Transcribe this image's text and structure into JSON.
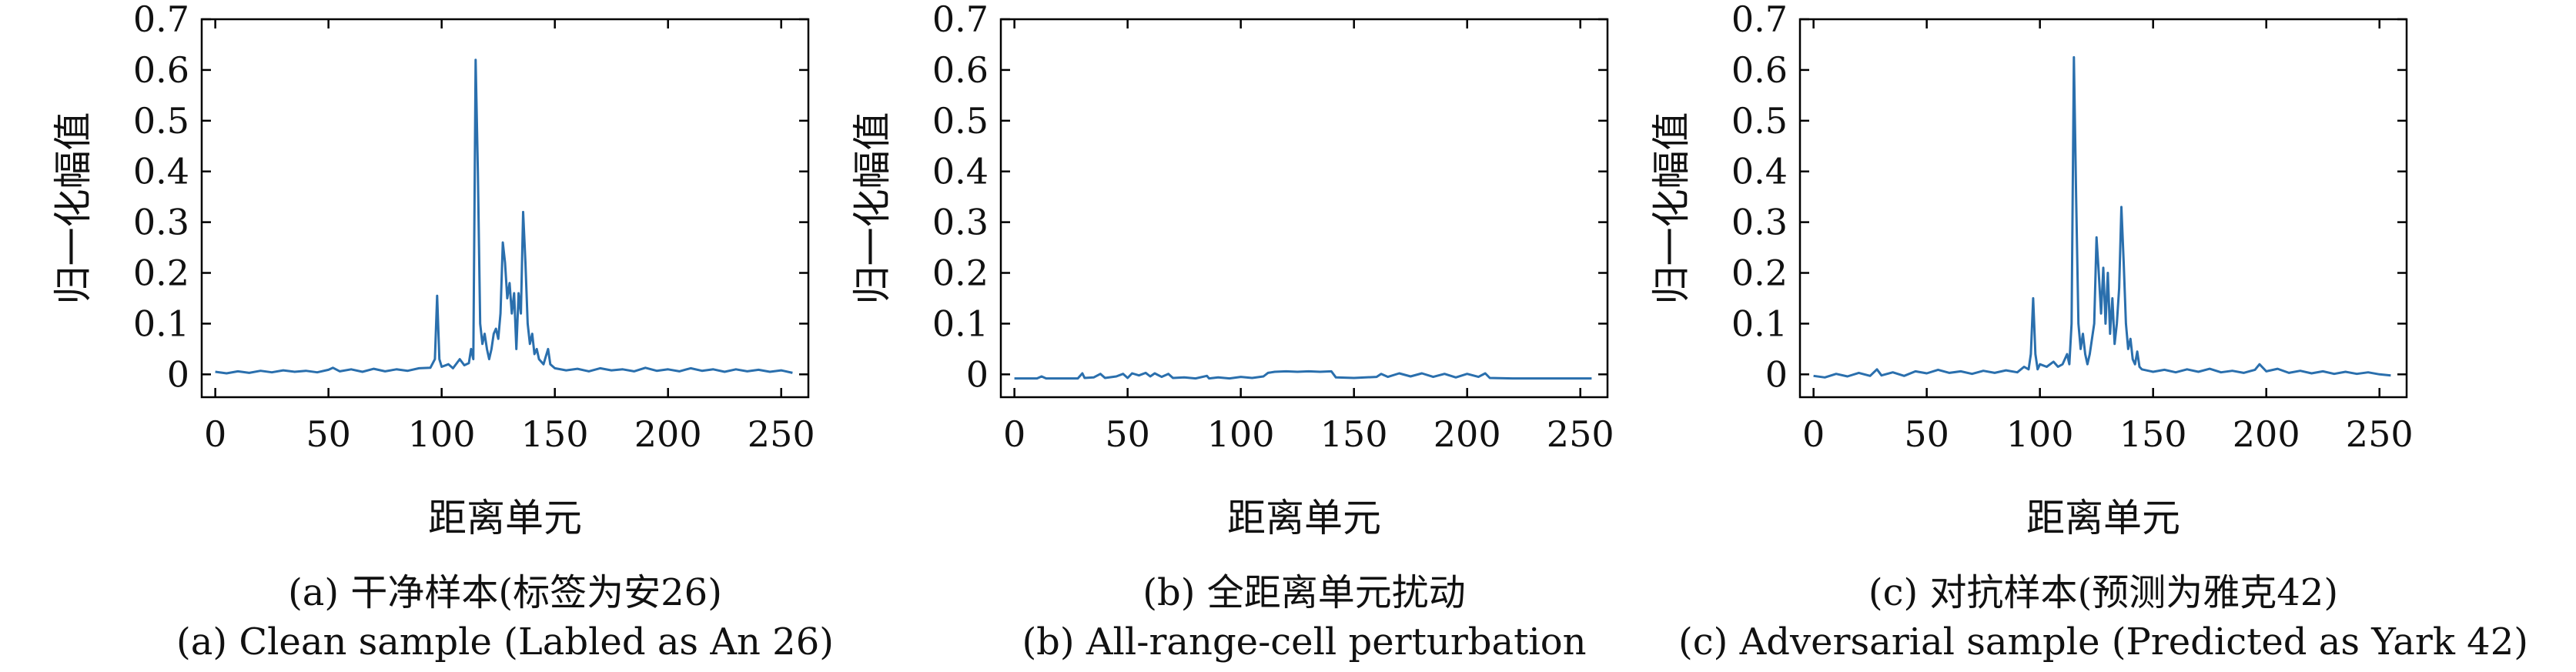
{
  "chart_data": [
    {
      "type": "line",
      "caption_cn": "(a) 干净样本(标签为安26)",
      "caption_en": "(a) Clean sample (Labled as An 26)",
      "xlabel": "距离单元",
      "ylabel": "归一化幅值",
      "xlim": [
        -6,
        262
      ],
      "ylim": [
        -0.045,
        0.7
      ],
      "xticks": [
        0,
        50,
        100,
        150,
        200,
        250
      ],
      "yticks": [
        0,
        0.1,
        0.2,
        0.3,
        0.4,
        0.5,
        0.6,
        0.7
      ],
      "ytick_labels": [
        "0",
        "0.1",
        "0.2",
        "0.3",
        "0.4",
        "0.5",
        "0.6",
        "0.7"
      ],
      "grid": false,
      "color": "#2a6fad",
      "series": [
        {
          "points": [
            [
              0,
              0.005
            ],
            [
              5,
              0.002
            ],
            [
              10,
              0.006
            ],
            [
              15,
              0.003
            ],
            [
              20,
              0.007
            ],
            [
              25,
              0.004
            ],
            [
              30,
              0.008
            ],
            [
              35,
              0.005
            ],
            [
              40,
              0.007
            ],
            [
              45,
              0.004
            ],
            [
              50,
              0.009
            ],
            [
              52,
              0.013
            ],
            [
              55,
              0.006
            ],
            [
              60,
              0.01
            ],
            [
              65,
              0.005
            ],
            [
              70,
              0.011
            ],
            [
              75,
              0.006
            ],
            [
              80,
              0.01
            ],
            [
              85,
              0.007
            ],
            [
              90,
              0.012
            ],
            [
              95,
              0.013
            ],
            [
              97,
              0.03
            ],
            [
              98,
              0.155
            ],
            [
              99,
              0.03
            ],
            [
              100,
              0.015
            ],
            [
              103,
              0.02
            ],
            [
              105,
              0.012
            ],
            [
              108,
              0.03
            ],
            [
              110,
              0.018
            ],
            [
              112,
              0.022
            ],
            [
              113,
              0.05
            ],
            [
              114,
              0.03
            ],
            [
              115,
              0.62
            ],
            [
              116,
              0.4
            ],
            [
              117,
              0.1
            ],
            [
              118,
              0.06
            ],
            [
              119,
              0.08
            ],
            [
              120,
              0.05
            ],
            [
              121,
              0.03
            ],
            [
              122,
              0.05
            ],
            [
              123,
              0.08
            ],
            [
              124,
              0.09
            ],
            [
              125,
              0.07
            ],
            [
              126,
              0.12
            ],
            [
              127,
              0.26
            ],
            [
              128,
              0.22
            ],
            [
              129,
              0.15
            ],
            [
              130,
              0.18
            ],
            [
              131,
              0.12
            ],
            [
              132,
              0.16
            ],
            [
              133,
              0.05
            ],
            [
              134,
              0.16
            ],
            [
              135,
              0.12
            ],
            [
              136,
              0.32
            ],
            [
              137,
              0.22
            ],
            [
              138,
              0.1
            ],
            [
              139,
              0.06
            ],
            [
              140,
              0.08
            ],
            [
              141,
              0.04
            ],
            [
              142,
              0.05
            ],
            [
              143,
              0.03
            ],
            [
              145,
              0.02
            ],
            [
              146,
              0.035
            ],
            [
              147,
              0.05
            ],
            [
              148,
              0.02
            ],
            [
              150,
              0.012
            ],
            [
              155,
              0.008
            ],
            [
              160,
              0.011
            ],
            [
              165,
              0.006
            ],
            [
              170,
              0.012
            ],
            [
              175,
              0.008
            ],
            [
              180,
              0.01
            ],
            [
              185,
              0.006
            ],
            [
              190,
              0.013
            ],
            [
              195,
              0.007
            ],
            [
              200,
              0.01
            ],
            [
              205,
              0.006
            ],
            [
              210,
              0.012
            ],
            [
              215,
              0.007
            ],
            [
              220,
              0.01
            ],
            [
              225,
              0.005
            ],
            [
              230,
              0.01
            ],
            [
              235,
              0.006
            ],
            [
              240,
              0.009
            ],
            [
              245,
              0.005
            ],
            [
              250,
              0.008
            ],
            [
              255,
              0.003
            ]
          ]
        }
      ]
    },
    {
      "type": "line",
      "caption_cn": "(b) 全距离单元扰动",
      "caption_en": "(b) All-range-cell perturbation",
      "xlabel": "距离单元",
      "ylabel": "归一化幅值",
      "xlim": [
        -6,
        262
      ],
      "ylim": [
        -0.045,
        0.7
      ],
      "xticks": [
        0,
        50,
        100,
        150,
        200,
        250
      ],
      "yticks": [
        0,
        0.1,
        0.2,
        0.3,
        0.4,
        0.5,
        0.6,
        0.7
      ],
      "ytick_labels": [
        "0",
        "0.1",
        "0.2",
        "0.3",
        "0.4",
        "0.5",
        "0.6",
        "0.7"
      ],
      "grid": false,
      "color": "#2a6fad",
      "series": [
        {
          "points": [
            [
              0,
              -0.008
            ],
            [
              10,
              -0.008
            ],
            [
              12,
              -0.004
            ],
            [
              14,
              -0.008
            ],
            [
              28,
              -0.008
            ],
            [
              30,
              0.002
            ],
            [
              31,
              -0.007
            ],
            [
              35,
              -0.006
            ],
            [
              38,
              0.001
            ],
            [
              40,
              -0.007
            ],
            [
              45,
              -0.004
            ],
            [
              48,
              0.001
            ],
            [
              50,
              -0.007
            ],
            [
              52,
              0.002
            ],
            [
              55,
              -0.002
            ],
            [
              58,
              0.003
            ],
            [
              60,
              -0.004
            ],
            [
              62,
              0.002
            ],
            [
              65,
              -0.005
            ],
            [
              68,
              0.001
            ],
            [
              70,
              -0.007
            ],
            [
              75,
              -0.006
            ],
            [
              80,
              -0.008
            ],
            [
              85,
              -0.003
            ],
            [
              86,
              -0.008
            ],
            [
              90,
              -0.006
            ],
            [
              95,
              -0.008
            ],
            [
              100,
              -0.005
            ],
            [
              105,
              -0.007
            ],
            [
              110,
              -0.004
            ],
            [
              112,
              0.003
            ],
            [
              115,
              0.005
            ],
            [
              120,
              0.006
            ],
            [
              125,
              0.005
            ],
            [
              130,
              0.006
            ],
            [
              135,
              0.005
            ],
            [
              140,
              0.006
            ],
            [
              142,
              -0.006
            ],
            [
              150,
              -0.007
            ],
            [
              160,
              -0.005
            ],
            [
              162,
              0.001
            ],
            [
              165,
              -0.005
            ],
            [
              170,
              0.002
            ],
            [
              175,
              -0.004
            ],
            [
              180,
              0.002
            ],
            [
              185,
              -0.005
            ],
            [
              190,
              0.001
            ],
            [
              195,
              -0.006
            ],
            [
              200,
              0.001
            ],
            [
              205,
              -0.005
            ],
            [
              208,
              0.002
            ],
            [
              210,
              -0.007
            ],
            [
              220,
              -0.008
            ],
            [
              230,
              -0.008
            ],
            [
              240,
              -0.008
            ],
            [
              250,
              -0.008
            ],
            [
              255,
              -0.008
            ]
          ]
        }
      ]
    },
    {
      "type": "line",
      "caption_cn": "(c) 对抗样本(预测为雅克42)",
      "caption_en": "(c) Adversarial sample (Predicted as Yark 42)",
      "xlabel": "距离单元",
      "ylabel": "归一化幅值",
      "xlim": [
        -6,
        262
      ],
      "ylim": [
        -0.045,
        0.7
      ],
      "xticks": [
        0,
        50,
        100,
        150,
        200,
        250
      ],
      "yticks": [
        0,
        0.1,
        0.2,
        0.3,
        0.4,
        0.5,
        0.6,
        0.7
      ],
      "ytick_labels": [
        "0",
        "0.1",
        "0.2",
        "0.3",
        "0.4",
        "0.5",
        "0.6",
        "0.7"
      ],
      "grid": false,
      "color": "#2a6fad",
      "series": [
        {
          "points": [
            [
              0,
              -0.003
            ],
            [
              5,
              -0.006
            ],
            [
              10,
              0.001
            ],
            [
              15,
              -0.004
            ],
            [
              20,
              0.003
            ],
            [
              25,
              -0.003
            ],
            [
              28,
              0.01
            ],
            [
              30,
              -0.002
            ],
            [
              35,
              0.004
            ],
            [
              40,
              -0.003
            ],
            [
              45,
              0.006
            ],
            [
              50,
              0.002
            ],
            [
              55,
              0.009
            ],
            [
              60,
              0.003
            ],
            [
              65,
              0.006
            ],
            [
              70,
              0.001
            ],
            [
              75,
              0.007
            ],
            [
              80,
              0.003
            ],
            [
              85,
              0.008
            ],
            [
              90,
              0.004
            ],
            [
              93,
              0.015
            ],
            [
              95,
              0.01
            ],
            [
              96,
              0.04
            ],
            [
              97,
              0.15
            ],
            [
              98,
              0.04
            ],
            [
              99,
              0.01
            ],
            [
              100,
              0.02
            ],
            [
              103,
              0.015
            ],
            [
              106,
              0.025
            ],
            [
              108,
              0.015
            ],
            [
              110,
              0.02
            ],
            [
              112,
              0.04
            ],
            [
              113,
              0.02
            ],
            [
              114,
              0.1
            ],
            [
              115,
              0.625
            ],
            [
              116,
              0.35
            ],
            [
              117,
              0.1
            ],
            [
              118,
              0.05
            ],
            [
              119,
              0.08
            ],
            [
              120,
              0.04
            ],
            [
              121,
              0.02
            ],
            [
              122,
              0.04
            ],
            [
              123,
              0.07
            ],
            [
              124,
              0.1
            ],
            [
              125,
              0.27
            ],
            [
              126,
              0.2
            ],
            [
              127,
              0.12
            ],
            [
              128,
              0.21
            ],
            [
              129,
              0.1
            ],
            [
              130,
              0.2
            ],
            [
              131,
              0.08
            ],
            [
              132,
              0.15
            ],
            [
              133,
              0.06
            ],
            [
              134,
              0.1
            ],
            [
              135,
              0.17
            ],
            [
              136,
              0.33
            ],
            [
              137,
              0.22
            ],
            [
              138,
              0.1
            ],
            [
              139,
              0.05
            ],
            [
              140,
              0.07
            ],
            [
              141,
              0.03
            ],
            [
              142,
              0.02
            ],
            [
              143,
              0.045
            ],
            [
              144,
              0.015
            ],
            [
              145,
              0.01
            ],
            [
              150,
              0.005
            ],
            [
              155,
              0.009
            ],
            [
              160,
              0.004
            ],
            [
              165,
              0.01
            ],
            [
              170,
              0.005
            ],
            [
              175,
              0.011
            ],
            [
              180,
              0.004
            ],
            [
              185,
              0.007
            ],
            [
              190,
              0.003
            ],
            [
              195,
              0.009
            ],
            [
              197,
              0.02
            ],
            [
              200,
              0.006
            ],
            [
              205,
              0.011
            ],
            [
              210,
              0.003
            ],
            [
              215,
              0.007
            ],
            [
              220,
              0.002
            ],
            [
              225,
              0.006
            ],
            [
              230,
              0.001
            ],
            [
              235,
              0.005
            ],
            [
              240,
              0.001
            ],
            [
              245,
              0.004
            ],
            [
              250,
              0.0
            ],
            [
              255,
              -0.002
            ]
          ]
        }
      ]
    }
  ]
}
